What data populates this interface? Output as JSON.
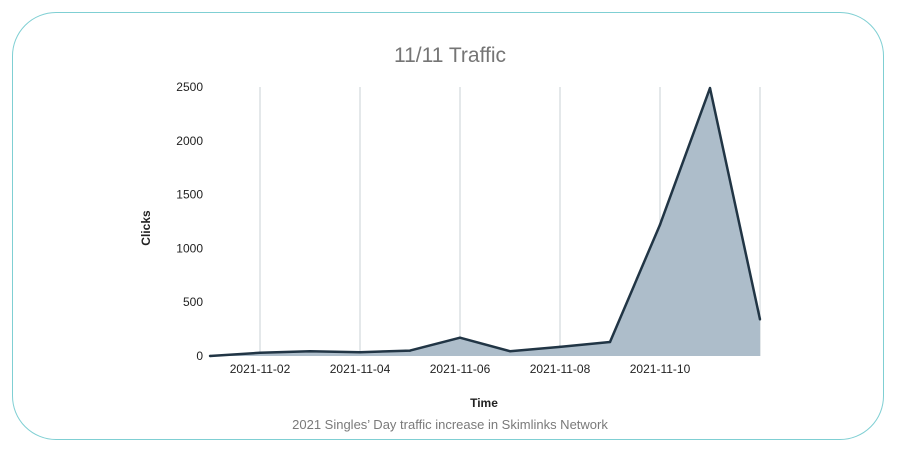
{
  "caption": "2021 Singles’ Day traffic increase in Skimlinks Network",
  "colors": {
    "border": "#7fcfd3",
    "area_fill": "#adbdca",
    "line": "#213545",
    "grid": "#c9d0d6",
    "title": "#757575"
  },
  "chart_data": {
    "type": "area",
    "title": "11/11 Traffic",
    "xlabel": "Time",
    "ylabel": "Clicks",
    "x": [
      "2021-11-01",
      "2021-11-02",
      "2021-11-03",
      "2021-11-04",
      "2021-11-05",
      "2021-11-06",
      "2021-11-07",
      "2021-11-08",
      "2021-11-09",
      "2021-11-10",
      "2021-11-11",
      "2021-11-12"
    ],
    "series": [
      {
        "values": [
          0,
          30,
          45,
          35,
          50,
          170,
          45,
          85,
          130,
          1220,
          2490,
          340
        ]
      }
    ],
    "xticks": [
      "2021-11-02",
      "2021-11-04",
      "2021-11-06",
      "2021-11-08",
      "2021-11-10"
    ],
    "yticks": [
      0,
      500,
      1000,
      1500,
      2000,
      2500
    ],
    "ylim": [
      0,
      2500
    ],
    "grid": "vertical",
    "legend": "none"
  }
}
